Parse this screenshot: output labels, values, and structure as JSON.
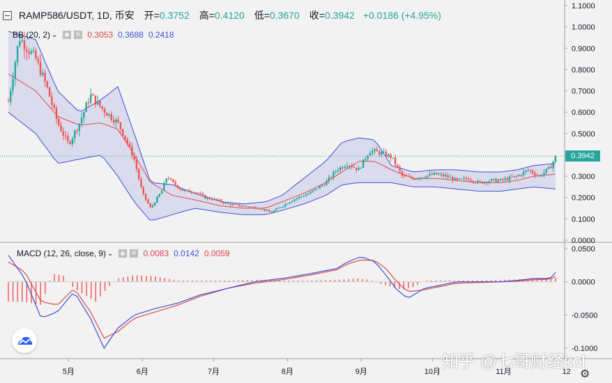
{
  "header": {
    "symbol": "RAMP586/USDT, 1D, 币安",
    "open_label": "开=",
    "open": "0.3752",
    "high_label": "高=",
    "high": "0.4120",
    "low_label": "低=",
    "low": "0.3670",
    "close_label": "收=",
    "close": "0.3942",
    "change": "+0.0186 (+4.95%)"
  },
  "bb_legend": {
    "label": "BB (20, 2)",
    "v1": "0.3053",
    "v2": "0.3688",
    "v3": "0.2418"
  },
  "macd_legend": {
    "label": "MACD (12, 26, close, 9)",
    "v1": "0.0083",
    "v2": "0.0142",
    "v3": "0.0059"
  },
  "price_tag": "0.3942",
  "watermark": "知乎 @七哥财经kol",
  "colors": {
    "up": "#26a69a",
    "down": "#ef5350",
    "band": "#3d4fd6",
    "basis": "#e04848",
    "macd": "#3d4fd6",
    "signal": "#e04848",
    "hist": "#ef5350"
  },
  "chart_data": [
    {
      "type": "candlestick",
      "title": "RAMP586/USDT, 1D, 币安",
      "x_ticks": [
        "5月",
        "6月",
        "7月",
        "8月",
        "9月",
        "10月",
        "11月",
        "12"
      ],
      "y_ticks": [
        "0.0000",
        "0.1000",
        "0.2000",
        "0.3000",
        "0.4000",
        "0.5000",
        "0.6000",
        "0.7000",
        "0.8000",
        "0.9000",
        "1.0000",
        "1.1000"
      ],
      "ylim": [
        0,
        1.1
      ],
      "last_price": 0.3942,
      "bollinger_bands": {
        "label": "BB (20, 2)",
        "upper": [
          [
            0,
            0.98
          ],
          [
            0.05,
            0.94
          ],
          [
            0.09,
            0.7
          ],
          [
            0.13,
            0.6
          ],
          [
            0.17,
            0.66
          ],
          [
            0.2,
            0.72
          ],
          [
            0.23,
            0.5
          ],
          [
            0.26,
            0.27
          ],
          [
            0.3,
            0.26
          ],
          [
            0.34,
            0.22
          ],
          [
            0.39,
            0.18
          ],
          [
            0.43,
            0.17
          ],
          [
            0.47,
            0.18
          ],
          [
            0.5,
            0.21
          ],
          [
            0.54,
            0.29
          ],
          [
            0.58,
            0.37
          ],
          [
            0.61,
            0.46
          ],
          [
            0.64,
            0.48
          ],
          [
            0.67,
            0.47
          ],
          [
            0.7,
            0.35
          ],
          [
            0.74,
            0.32
          ],
          [
            0.78,
            0.33
          ],
          [
            0.82,
            0.33
          ],
          [
            0.86,
            0.32
          ],
          [
            0.9,
            0.32
          ],
          [
            0.93,
            0.33
          ],
          [
            0.96,
            0.35
          ],
          [
            1,
            0.36
          ]
        ],
        "middle": [
          [
            0,
            0.78
          ],
          [
            0.05,
            0.7
          ],
          [
            0.09,
            0.58
          ],
          [
            0.13,
            0.54
          ],
          [
            0.17,
            0.55
          ],
          [
            0.2,
            0.52
          ],
          [
            0.23,
            0.4
          ],
          [
            0.26,
            0.27
          ],
          [
            0.3,
            0.21
          ],
          [
            0.34,
            0.19
          ],
          [
            0.39,
            0.16
          ],
          [
            0.43,
            0.15
          ],
          [
            0.47,
            0.15
          ],
          [
            0.5,
            0.18
          ],
          [
            0.54,
            0.22
          ],
          [
            0.58,
            0.27
          ],
          [
            0.61,
            0.32
          ],
          [
            0.64,
            0.37
          ],
          [
            0.67,
            0.37
          ],
          [
            0.7,
            0.33
          ],
          [
            0.74,
            0.29
          ],
          [
            0.78,
            0.29
          ],
          [
            0.82,
            0.28
          ],
          [
            0.86,
            0.27
          ],
          [
            0.9,
            0.27
          ],
          [
            0.93,
            0.28
          ],
          [
            0.96,
            0.3
          ],
          [
            1,
            0.31
          ]
        ],
        "lower": [
          [
            0,
            0.6
          ],
          [
            0.05,
            0.5
          ],
          [
            0.09,
            0.36
          ],
          [
            0.13,
            0.38
          ],
          [
            0.17,
            0.4
          ],
          [
            0.2,
            0.3
          ],
          [
            0.23,
            0.18
          ],
          [
            0.26,
            0.09
          ],
          [
            0.3,
            0.12
          ],
          [
            0.34,
            0.15
          ],
          [
            0.39,
            0.13
          ],
          [
            0.43,
            0.12
          ],
          [
            0.47,
            0.12
          ],
          [
            0.5,
            0.14
          ],
          [
            0.54,
            0.17
          ],
          [
            0.58,
            0.21
          ],
          [
            0.61,
            0.26
          ],
          [
            0.64,
            0.27
          ],
          [
            0.67,
            0.27
          ],
          [
            0.7,
            0.27
          ],
          [
            0.74,
            0.25
          ],
          [
            0.78,
            0.25
          ],
          [
            0.82,
            0.24
          ],
          [
            0.86,
            0.23
          ],
          [
            0.9,
            0.23
          ],
          [
            0.93,
            0.24
          ],
          [
            0.96,
            0.25
          ],
          [
            1,
            0.24
          ]
        ]
      },
      "close_path": [
        [
          0,
          0.65
        ],
        [
          0.02,
          0.95
        ],
        [
          0.05,
          0.85
        ],
        [
          0.07,
          0.72
        ],
        [
          0.09,
          0.55
        ],
        [
          0.11,
          0.45
        ],
        [
          0.13,
          0.55
        ],
        [
          0.15,
          0.68
        ],
        [
          0.17,
          0.62
        ],
        [
          0.2,
          0.55
        ],
        [
          0.21,
          0.5
        ],
        [
          0.23,
          0.38
        ],
        [
          0.245,
          0.22
        ],
        [
          0.26,
          0.15
        ],
        [
          0.28,
          0.23
        ],
        [
          0.29,
          0.3
        ],
        [
          0.3,
          0.27
        ],
        [
          0.32,
          0.23
        ],
        [
          0.34,
          0.23
        ],
        [
          0.36,
          0.2
        ],
        [
          0.38,
          0.19
        ],
        [
          0.4,
          0.17
        ],
        [
          0.43,
          0.16
        ],
        [
          0.46,
          0.15
        ],
        [
          0.48,
          0.13
        ],
        [
          0.5,
          0.16
        ],
        [
          0.52,
          0.19
        ],
        [
          0.55,
          0.22
        ],
        [
          0.58,
          0.27
        ],
        [
          0.6,
          0.33
        ],
        [
          0.62,
          0.36
        ],
        [
          0.64,
          0.33
        ],
        [
          0.66,
          0.42
        ],
        [
          0.68,
          0.41
        ],
        [
          0.7,
          0.39
        ],
        [
          0.72,
          0.3
        ],
        [
          0.74,
          0.29
        ],
        [
          0.76,
          0.3
        ],
        [
          0.78,
          0.31
        ],
        [
          0.8,
          0.3
        ],
        [
          0.82,
          0.28
        ],
        [
          0.84,
          0.29
        ],
        [
          0.86,
          0.27
        ],
        [
          0.88,
          0.28
        ],
        [
          0.9,
          0.28
        ],
        [
          0.93,
          0.3
        ],
        [
          0.95,
          0.33
        ],
        [
          0.97,
          0.3
        ],
        [
          0.99,
          0.34
        ],
        [
          1,
          0.39
        ]
      ]
    },
    {
      "type": "macd",
      "label": "MACD (12, 26, close, 9)",
      "y_ticks": [
        "0.0500",
        "0.0000",
        "-0.0500",
        "-0.1000"
      ],
      "ylim": [
        -0.1,
        0.05
      ],
      "macd": [
        [
          0,
          0.04
        ],
        [
          0.03,
          0.005
        ],
        [
          0.06,
          -0.055
        ],
        [
          0.09,
          -0.045
        ],
        [
          0.12,
          -0.015
        ],
        [
          0.15,
          -0.055
        ],
        [
          0.175,
          -0.1
        ],
        [
          0.2,
          -0.07
        ],
        [
          0.23,
          -0.05
        ],
        [
          0.27,
          -0.04
        ],
        [
          0.31,
          -0.032
        ],
        [
          0.35,
          -0.02
        ],
        [
          0.4,
          -0.01
        ],
        [
          0.45,
          0.0
        ],
        [
          0.5,
          0.005
        ],
        [
          0.55,
          0.012
        ],
        [
          0.6,
          0.02
        ],
        [
          0.62,
          0.03
        ],
        [
          0.645,
          0.038
        ],
        [
          0.67,
          0.03
        ],
        [
          0.69,
          0.01
        ],
        [
          0.71,
          -0.012
        ],
        [
          0.73,
          -0.025
        ],
        [
          0.76,
          -0.01
        ],
        [
          0.79,
          -0.005
        ],
        [
          0.82,
          0.0
        ],
        [
          0.86,
          0.0
        ],
        [
          0.9,
          0.0
        ],
        [
          0.93,
          0.002
        ],
        [
          0.96,
          0.005
        ],
        [
          0.99,
          0.005
        ],
        [
          1,
          0.014
        ]
      ],
      "signal": [
        [
          0,
          0.03
        ],
        [
          0.03,
          0.015
        ],
        [
          0.06,
          -0.03
        ],
        [
          0.09,
          -0.035
        ],
        [
          0.12,
          -0.01
        ],
        [
          0.15,
          -0.045
        ],
        [
          0.175,
          -0.085
        ],
        [
          0.2,
          -0.075
        ],
        [
          0.23,
          -0.055
        ],
        [
          0.27,
          -0.045
        ],
        [
          0.31,
          -0.035
        ],
        [
          0.35,
          -0.022
        ],
        [
          0.4,
          -0.01
        ],
        [
          0.45,
          -0.002
        ],
        [
          0.5,
          0.003
        ],
        [
          0.55,
          0.01
        ],
        [
          0.6,
          0.018
        ],
        [
          0.62,
          0.027
        ],
        [
          0.645,
          0.033
        ],
        [
          0.67,
          0.032
        ],
        [
          0.69,
          0.02
        ],
        [
          0.71,
          0.0
        ],
        [
          0.73,
          -0.015
        ],
        [
          0.76,
          -0.012
        ],
        [
          0.79,
          -0.007
        ],
        [
          0.82,
          -0.002
        ],
        [
          0.86,
          -0.001
        ],
        [
          0.9,
          0.0
        ],
        [
          0.93,
          0.001
        ],
        [
          0.96,
          0.003
        ],
        [
          0.99,
          0.004
        ],
        [
          1,
          0.008
        ]
      ],
      "histogram_envelope": [
        [
          0,
          -0.03
        ],
        [
          0.03,
          -0.03
        ],
        [
          0.06,
          -0.035
        ],
        [
          0.08,
          0.012
        ],
        [
          0.1,
          0.01
        ],
        [
          0.12,
          -0.01
        ],
        [
          0.14,
          -0.02
        ],
        [
          0.16,
          -0.03
        ],
        [
          0.18,
          -0.01
        ],
        [
          0.2,
          0.005
        ],
        [
          0.23,
          0.01
        ],
        [
          0.27,
          0.008
        ],
        [
          0.31,
          0.002
        ],
        [
          0.35,
          0.002
        ],
        [
          0.4,
          0.002
        ],
        [
          0.45,
          0.003
        ],
        [
          0.5,
          0.002
        ],
        [
          0.55,
          0.002
        ],
        [
          0.6,
          0.003
        ],
        [
          0.62,
          0.004
        ],
        [
          0.64,
          0.005
        ],
        [
          0.66,
          0.003
        ],
        [
          0.68,
          -0.003
        ],
        [
          0.7,
          -0.008
        ],
        [
          0.72,
          -0.012
        ],
        [
          0.74,
          -0.008
        ],
        [
          0.76,
          0.002
        ],
        [
          0.8,
          0.002
        ],
        [
          0.85,
          0.002
        ],
        [
          0.9,
          0.003
        ],
        [
          0.95,
          0.004
        ],
        [
          1,
          0.006
        ]
      ]
    }
  ]
}
